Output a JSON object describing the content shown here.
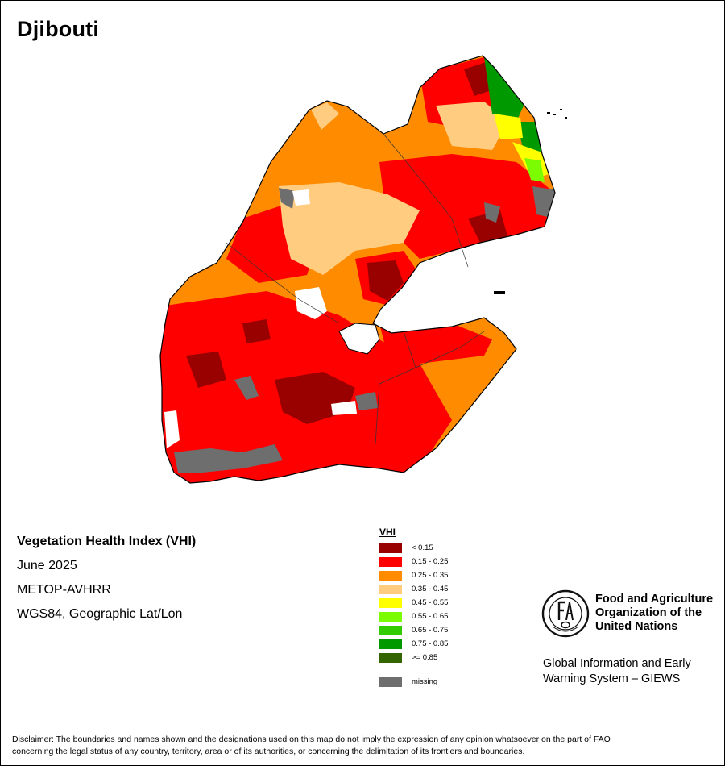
{
  "map": {
    "title": "Djibouti",
    "layer": "Vegetation Health Index (VHI)",
    "period": "June 2025",
    "sensor": "METOP-AVHRR",
    "projection": "WGS84, Geographic Lat/Lon"
  },
  "legend": {
    "title": "VHI",
    "classes": [
      {
        "label": "< 0.15",
        "color": "#990000"
      },
      {
        "label": "0.15 - 0.25",
        "color": "#ff0000"
      },
      {
        "label": "0.25 - 0.35",
        "color": "#ff8c00"
      },
      {
        "label": "0.35 - 0.45",
        "color": "#ffcc80"
      },
      {
        "label": "0.45 - 0.55",
        "color": "#ffff00"
      },
      {
        "label": "0.55 - 0.65",
        "color": "#7cfc00"
      },
      {
        "label": "0.65 - 0.75",
        "color": "#33cc00"
      },
      {
        "label": "0.75 - 0.85",
        "color": "#009900"
      },
      {
        "label": ">= 0.85",
        "color": "#336600"
      }
    ],
    "missing": {
      "label": "missing",
      "color": "#6e6e6e"
    }
  },
  "organization": {
    "logo_text": "FAO",
    "logo_ring_text": "FIAT PANIS",
    "name_line1": "Food and Agriculture",
    "name_line2": "Organization of the",
    "name_line3": "United Nations",
    "system_line1": "Global Information and Early",
    "system_line2": "Warning System – GIEWS"
  },
  "disclaimer": {
    "line1": "Disclaimer: The boundaries and names shown and the designations used on this map do not imply the expression of any opinion whatsoever on the part of FAO",
    "line2": "concerning the legal status of any country, territory, area or of its authorities, or concerning the delimitation of its frontiers and boundaries."
  }
}
